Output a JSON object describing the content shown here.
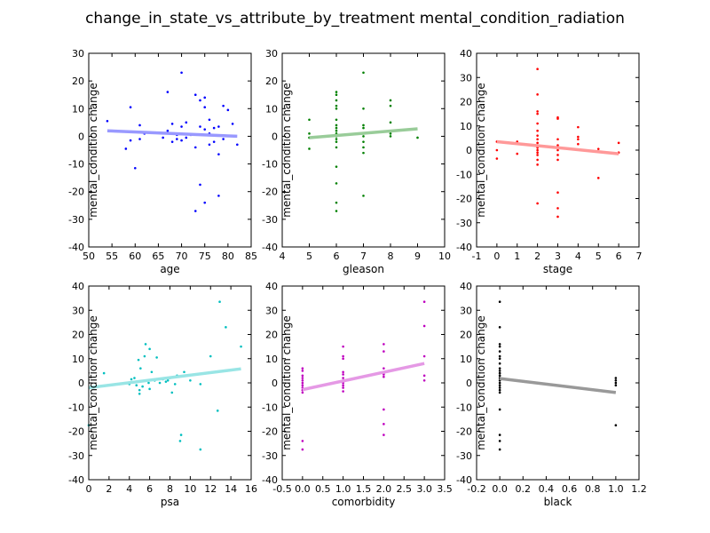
{
  "figure": {
    "title": "change_in_state_vs_attribute_by_treatment mental_condition_radiation"
  },
  "chart_data": [
    {
      "type": "scatter",
      "xlabel": "age",
      "ylabel": "mental_condition change",
      "xlim": [
        50,
        85
      ],
      "ylim": [
        -40,
        30
      ],
      "xticks": [
        "50",
        "55",
        "60",
        "65",
        "70",
        "75",
        "80",
        "85"
      ],
      "yticks": [
        "-40",
        "-30",
        "-20",
        "-10",
        "0",
        "10",
        "20",
        "30"
      ],
      "color": "#0000ff",
      "fit_color": "#9999ff",
      "fit": [
        [
          54,
          2.0
        ],
        [
          82,
          0.0
        ]
      ],
      "points": [
        [
          54,
          5.5
        ],
        [
          58,
          -4.5
        ],
        [
          59,
          10.5
        ],
        [
          59,
          -1.5
        ],
        [
          60,
          -11.5
        ],
        [
          61,
          4
        ],
        [
          61,
          -1
        ],
        [
          62,
          1
        ],
        [
          63,
          1.5
        ],
        [
          66,
          -0.5
        ],
        [
          67,
          16
        ],
        [
          67,
          2
        ],
        [
          68,
          4.5
        ],
        [
          68,
          -2
        ],
        [
          69,
          0.5
        ],
        [
          69,
          -1
        ],
        [
          70,
          23
        ],
        [
          70,
          -1.5
        ],
        [
          70,
          3.5
        ],
        [
          71,
          5
        ],
        [
          71,
          -0.5
        ],
        [
          72,
          0.5
        ],
        [
          73,
          15
        ],
        [
          73,
          -27
        ],
        [
          73,
          -4
        ],
        [
          74,
          3.5
        ],
        [
          74,
          13
        ],
        [
          74,
          -17.5
        ],
        [
          75,
          10.5
        ],
        [
          75,
          -24
        ],
        [
          75,
          14
        ],
        [
          75,
          2.5
        ],
        [
          76,
          1
        ],
        [
          76,
          6
        ],
        [
          76,
          -3
        ],
        [
          77,
          3
        ],
        [
          77,
          -2
        ],
        [
          78,
          -21.5
        ],
        [
          78,
          -6.5
        ],
        [
          78,
          3.5
        ],
        [
          79,
          11
        ],
        [
          79,
          -1
        ],
        [
          80,
          9.5
        ],
        [
          81,
          4.5
        ],
        [
          82,
          -3
        ]
      ]
    },
    {
      "type": "scatter",
      "xlabel": "gleason",
      "ylabel": "mental_condition change",
      "xlim": [
        4,
        10
      ],
      "ylim": [
        -40,
        30
      ],
      "xticks": [
        "4",
        "5",
        "6",
        "7",
        "8",
        "9",
        "10"
      ],
      "yticks": [
        "-40",
        "-30",
        "-20",
        "-10",
        "0",
        "10",
        "20",
        "30"
      ],
      "color": "#008000",
      "fit_color": "#99cc99",
      "fit": [
        [
          5,
          -0.5
        ],
        [
          9,
          2.7
        ]
      ],
      "points": [
        [
          5,
          6
        ],
        [
          5,
          1
        ],
        [
          5,
          -0.5
        ],
        [
          5,
          -4.5
        ],
        [
          6,
          16
        ],
        [
          6,
          15
        ],
        [
          6,
          13
        ],
        [
          6,
          11
        ],
        [
          6,
          10
        ],
        [
          6,
          6
        ],
        [
          6,
          4
        ],
        [
          6,
          3
        ],
        [
          6,
          2
        ],
        [
          6,
          1
        ],
        [
          6,
          0
        ],
        [
          6,
          -1
        ],
        [
          6,
          -2
        ],
        [
          6,
          -4
        ],
        [
          6,
          -11
        ],
        [
          6,
          -17
        ],
        [
          6,
          -24
        ],
        [
          6,
          -27
        ],
        [
          7,
          23
        ],
        [
          7,
          10
        ],
        [
          7,
          4
        ],
        [
          7,
          3
        ],
        [
          7,
          1
        ],
        [
          7,
          0
        ],
        [
          7,
          -2
        ],
        [
          7,
          -4
        ],
        [
          7,
          -6
        ],
        [
          7,
          -21.5
        ],
        [
          8,
          13
        ],
        [
          8,
          11
        ],
        [
          8,
          5
        ],
        [
          8,
          1
        ],
        [
          8,
          0
        ],
        [
          9,
          -0.5
        ]
      ]
    },
    {
      "type": "scatter",
      "xlabel": "stage",
      "ylabel": "mental_condition change",
      "xlim": [
        -1,
        7
      ],
      "ylim": [
        -40,
        40
      ],
      "xticks": [
        "-1",
        "0",
        "1",
        "2",
        "3",
        "4",
        "5",
        "6",
        "7"
      ],
      "yticks": [
        "-40",
        "-30",
        "-20",
        "-10",
        "0",
        "10",
        "20",
        "30",
        "40"
      ],
      "color": "#ff0000",
      "fit_color": "#ff9999",
      "fit": [
        [
          0,
          3.5
        ],
        [
          6,
          -1.5
        ]
      ],
      "points": [
        [
          0,
          3.5
        ],
        [
          0,
          0
        ],
        [
          0,
          -3.5
        ],
        [
          1,
          3.5
        ],
        [
          1,
          -1.5
        ],
        [
          2,
          33.5
        ],
        [
          2,
          23
        ],
        [
          2,
          16
        ],
        [
          2,
          15
        ],
        [
          2,
          11
        ],
        [
          2,
          8
        ],
        [
          2,
          6
        ],
        [
          2,
          4.5
        ],
        [
          2,
          3
        ],
        [
          2,
          2
        ],
        [
          2,
          1
        ],
        [
          2,
          0
        ],
        [
          2,
          -1
        ],
        [
          2,
          -2
        ],
        [
          2,
          -4
        ],
        [
          2,
          -6
        ],
        [
          2,
          -22
        ],
        [
          3,
          13.5
        ],
        [
          3,
          13
        ],
        [
          3,
          4.5
        ],
        [
          3,
          2
        ],
        [
          3,
          0
        ],
        [
          3,
          -2
        ],
        [
          3,
          -4
        ],
        [
          3,
          -17.5
        ],
        [
          3,
          -24
        ],
        [
          3,
          -27.5
        ],
        [
          4,
          9.5
        ],
        [
          4,
          5.5
        ],
        [
          4,
          4.5
        ],
        [
          4,
          2.5
        ],
        [
          5,
          -11.5
        ],
        [
          5,
          0.5
        ],
        [
          6,
          3
        ],
        [
          6,
          -1
        ]
      ]
    },
    {
      "type": "scatter",
      "xlabel": "psa",
      "ylabel": "mental_condition change",
      "xlim": [
        0,
        16
      ],
      "ylim": [
        -40,
        40
      ],
      "xticks": [
        "0",
        "2",
        "4",
        "6",
        "8",
        "10",
        "12",
        "14",
        "16"
      ],
      "yticks": [
        "-40",
        "-30",
        "-20",
        "-10",
        "0",
        "10",
        "20",
        "30",
        "40"
      ],
      "color": "#00bfbf",
      "fit_color": "#99e5e5",
      "fit": [
        [
          0,
          -2.0
        ],
        [
          15,
          5.8
        ]
      ],
      "points": [
        [
          0,
          -17.5
        ],
        [
          1.5,
          4
        ],
        [
          4,
          -0.5
        ],
        [
          4.2,
          1.5
        ],
        [
          4.5,
          2
        ],
        [
          4.7,
          -1
        ],
        [
          4.9,
          9.5
        ],
        [
          5,
          -3
        ],
        [
          5,
          -4.5
        ],
        [
          5.1,
          6
        ],
        [
          5.3,
          -1.5
        ],
        [
          5.5,
          11
        ],
        [
          5.6,
          16
        ],
        [
          5.9,
          0
        ],
        [
          6,
          14
        ],
        [
          6,
          -2.5
        ],
        [
          6.2,
          4.5
        ],
        [
          6.5,
          1
        ],
        [
          6.7,
          10.5
        ],
        [
          7,
          0
        ],
        [
          7.3,
          1.5
        ],
        [
          7.6,
          0.5
        ],
        [
          7.8,
          1
        ],
        [
          8,
          2
        ],
        [
          8.2,
          -4
        ],
        [
          8.5,
          -0.5
        ],
        [
          8.7,
          3
        ],
        [
          9,
          -24
        ],
        [
          9.1,
          -21.5
        ],
        [
          9.4,
          4.5
        ],
        [
          10,
          1
        ],
        [
          11,
          -27.5
        ],
        [
          11,
          -0.5
        ],
        [
          12,
          11
        ],
        [
          12.5,
          4.5
        ],
        [
          12.7,
          -11.5
        ],
        [
          12.9,
          33.5
        ],
        [
          13.5,
          23
        ],
        [
          15,
          15
        ]
      ]
    },
    {
      "type": "scatter",
      "xlabel": "comorbidity",
      "ylabel": "mental_condition change",
      "xlim": [
        -0.5,
        3.5
      ],
      "ylim": [
        -40,
        40
      ],
      "xticks": [
        "-0.5",
        "0.0",
        "0.5",
        "1.0",
        "1.5",
        "2.0",
        "2.5",
        "3.0",
        "3.5"
      ],
      "yticks": [
        "-40",
        "-30",
        "-20",
        "-10",
        "0",
        "10",
        "20",
        "30",
        "40"
      ],
      "color": "#bf00bf",
      "fit_color": "#e599e5",
      "fit": [
        [
          0,
          -2.8
        ],
        [
          3,
          8.0
        ]
      ],
      "points": [
        [
          0,
          6
        ],
        [
          0,
          5
        ],
        [
          0,
          3
        ],
        [
          0,
          2
        ],
        [
          0,
          1
        ],
        [
          0,
          0
        ],
        [
          0,
          -1
        ],
        [
          0,
          -2
        ],
        [
          0,
          -3
        ],
        [
          0,
          -4
        ],
        [
          0,
          -24
        ],
        [
          0,
          -27.5
        ],
        [
          1,
          15
        ],
        [
          1,
          11
        ],
        [
          1,
          10
        ],
        [
          1,
          4.5
        ],
        [
          1,
          3.5
        ],
        [
          1,
          2
        ],
        [
          1,
          1
        ],
        [
          1,
          0
        ],
        [
          1,
          -1
        ],
        [
          1,
          -2
        ],
        [
          1,
          -3.5
        ],
        [
          2,
          16
        ],
        [
          2,
          13
        ],
        [
          2,
          6
        ],
        [
          2,
          4.5
        ],
        [
          2,
          3.5
        ],
        [
          2,
          2.5
        ],
        [
          2,
          -11
        ],
        [
          2,
          -17
        ],
        [
          2,
          -21.5
        ],
        [
          3,
          33.5
        ],
        [
          3,
          23.5
        ],
        [
          3,
          11
        ],
        [
          3,
          3
        ],
        [
          3,
          1
        ]
      ]
    },
    {
      "type": "scatter",
      "xlabel": "black",
      "ylabel": "mental_condition change",
      "xlim": [
        -0.2,
        1.2
      ],
      "ylim": [
        -40,
        40
      ],
      "xticks": [
        "-0.2",
        "0.0",
        "0.2",
        "0.4",
        "0.6",
        "0.8",
        "1.0",
        "1.2"
      ],
      "yticks": [
        "-40",
        "-30",
        "-20",
        "-10",
        "0",
        "10",
        "20",
        "30",
        "40"
      ],
      "color": "#000000",
      "fit_color": "#999999",
      "fit": [
        [
          0,
          1.8
        ],
        [
          1,
          -4.0
        ]
      ],
      "points": [
        [
          0,
          33.5
        ],
        [
          0,
          23
        ],
        [
          0,
          16
        ],
        [
          0,
          15
        ],
        [
          0,
          13
        ],
        [
          0,
          11
        ],
        [
          0,
          10
        ],
        [
          0,
          8
        ],
        [
          0,
          6
        ],
        [
          0,
          5
        ],
        [
          0,
          4
        ],
        [
          0,
          3
        ],
        [
          0,
          2
        ],
        [
          0,
          1
        ],
        [
          0,
          0
        ],
        [
          0,
          -1
        ],
        [
          0,
          -2
        ],
        [
          0,
          -3
        ],
        [
          0,
          -4
        ],
        [
          0,
          -11
        ],
        [
          0,
          -21.5
        ],
        [
          0,
          -24
        ],
        [
          0,
          -27.5
        ],
        [
          1,
          2
        ],
        [
          1,
          1
        ],
        [
          1,
          0
        ],
        [
          1,
          -1
        ],
        [
          1,
          -17.5
        ]
      ]
    }
  ]
}
